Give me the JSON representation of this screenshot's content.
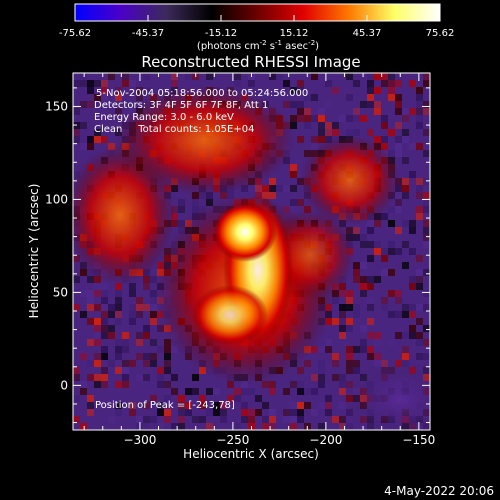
{
  "chart_data": {
    "type": "heatmap",
    "title": "Reconstructed RHESSI Image",
    "colorbar": {
      "ticks": [
        "-75.62",
        "-45.37",
        "-15.12",
        "15.12",
        "45.37",
        "75.62"
      ],
      "min": -75.62,
      "max": 75.62,
      "unit_main": "(photons cm",
      "unit_sup1": "-2",
      "unit_mid": " s",
      "unit_sup2": "-1",
      "unit_end": " asec",
      "unit_sup3": "-2",
      "unit_close": ")",
      "colors": [
        "#0000ff",
        "#4b00c8",
        "#3c2a5a",
        "#000000",
        "#6e0000",
        "#e10000",
        "#ff7800",
        "#ffff66",
        "#ffffff"
      ]
    },
    "annotations": [
      "5-Nov-2004 05:18:56.000 to 05:24:56.000",
      "Detectors: 3F 4F 5F 6F 7F 8F, Att 1",
      "Energy Range: 3.0 - 6.0 keV",
      "Clean     Total counts: 1.05E+04"
    ],
    "peak_label": "Position of Peak = [-243,78]",
    "xlabel": "Heliocentric X (arcsec)",
    "ylabel": "Heliocentric Y (arcsec)",
    "xticks": [
      -300,
      -250,
      -200,
      -150
    ],
    "yticks": [
      0,
      50,
      100,
      150
    ],
    "xlim": [
      -336,
      -144
    ],
    "ylim": [
      -24,
      168
    ],
    "peak": [
      -243,
      78
    ],
    "footer_date": "4-May-2022 20:06"
  }
}
